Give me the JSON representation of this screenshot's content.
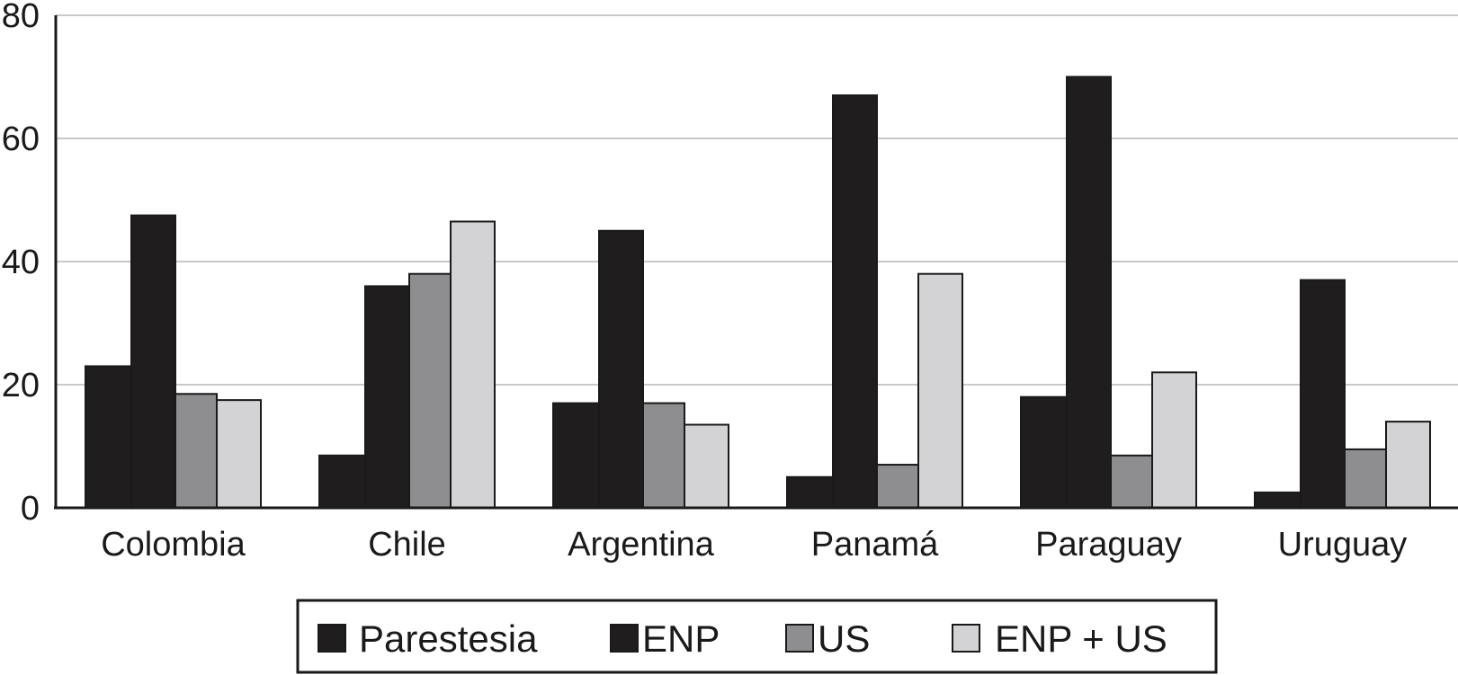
{
  "chart_data": {
    "type": "bar",
    "categories": [
      "Colombia",
      "Chile",
      "Argentina",
      "Panamá",
      "Paraguay",
      "Uruguay"
    ],
    "series": [
      {
        "name": "Parestesia",
        "values": [
          23,
          8.5,
          17,
          5,
          18,
          2.5
        ],
        "color": "#1f1d1e"
      },
      {
        "name": "ENP",
        "values": [
          47.5,
          36,
          45,
          67,
          70,
          37
        ],
        "color": "#1f1d1e"
      },
      {
        "name": "US",
        "values": [
          18.5,
          38,
          17,
          7,
          8.5,
          9.5
        ],
        "color": "#8e8e90"
      },
      {
        "name": "ENP + US",
        "values": [
          17.5,
          46.5,
          13.5,
          38,
          22,
          14
        ],
        "color": "#d3d3d5"
      }
    ],
    "ylim": [
      0,
      80
    ],
    "yticks": [
      0,
      20,
      40,
      60,
      80
    ],
    "grid": true,
    "legend_position": "bottom"
  }
}
